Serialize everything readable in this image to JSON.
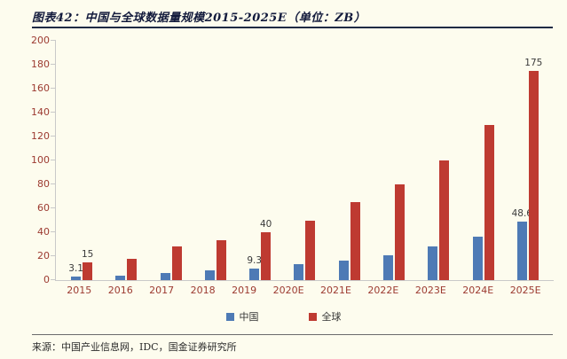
{
  "header": {
    "title": "图表42：中国与全球数据量规模2015-2025E（单位：ZB）"
  },
  "footer": {
    "source": "来源：中国产业信息网，IDC，国金证券研究所"
  },
  "legend": {
    "items": [
      {
        "label": "中国",
        "color": "#4E7AB5"
      },
      {
        "label": "全球",
        "color": "#BE3A31"
      }
    ]
  },
  "chart_data": {
    "type": "bar",
    "title": "图表42：中国与全球数据量规模2015-2025E（单位：ZB）",
    "unit": "ZB",
    "categories": [
      "2015",
      "2016",
      "2017",
      "2018",
      "2019",
      "2020E",
      "2021E",
      "2022E",
      "2023E",
      "2024E",
      "2025E"
    ],
    "series": [
      {
        "name": "中国",
        "color": "#4E7AB5",
        "values": [
          3.1,
          4,
          6,
          8,
          9.3,
          13,
          16,
          21,
          28,
          36,
          48.6
        ],
        "labels": {
          "0": "3.1",
          "4": "9.3",
          "10": "48.6"
        }
      },
      {
        "name": "全球",
        "color": "#BE3A31",
        "values": [
          15,
          18,
          28,
          33,
          40,
          50,
          65,
          80,
          100,
          130,
          175
        ],
        "labels": {
          "0": "15",
          "4": "40",
          "10": "175"
        }
      }
    ],
    "ylim": [
      0,
      200
    ],
    "ytick_step": 20,
    "grid": false,
    "legend_position": "bottom"
  }
}
